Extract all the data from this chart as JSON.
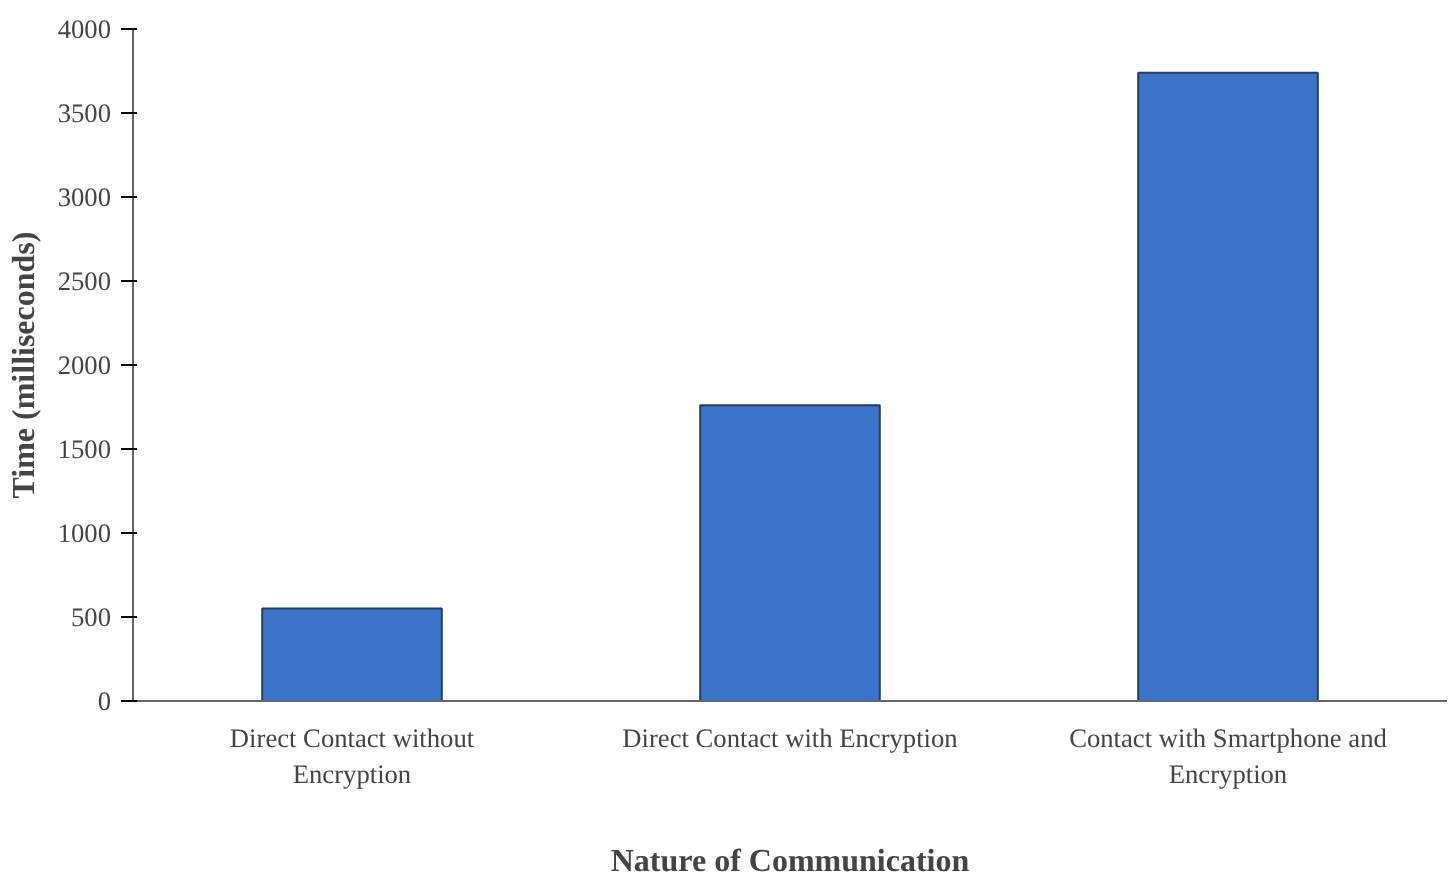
{
  "chart_data": {
    "type": "bar",
    "xlabel": "Nature of Communication",
    "ylabel": "Time (milliseconds)",
    "categories": [
      "Direct Contact without Encryption",
      "Direct Contact with Encryption",
      "Contact with Smartphone and Encryption"
    ],
    "values": [
      550,
      1760,
      3740
    ],
    "color": "#3b74c9",
    "ylim": [
      0,
      4000
    ],
    "yticks": [
      0,
      500,
      1000,
      1500,
      2000,
      2500,
      3000,
      3500,
      4000
    ],
    "grid": false
  }
}
